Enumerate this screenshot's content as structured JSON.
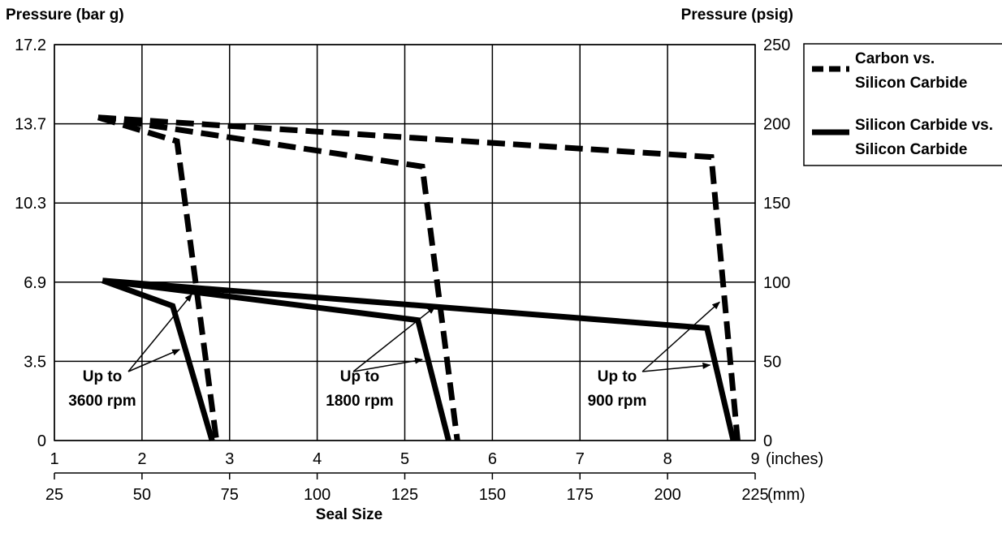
{
  "chart_data": {
    "type": "line",
    "left_axis": {
      "label": "Pressure (bar g)",
      "ticks": [
        "0",
        "3.5",
        "6.9",
        "10.3",
        "13.7",
        "17.2"
      ],
      "range": [
        0,
        17.2
      ]
    },
    "right_axis": {
      "label": "Pressure (psig)",
      "ticks": [
        "0",
        "50",
        "100",
        "150",
        "200",
        "250"
      ],
      "range": [
        0,
        250
      ]
    },
    "x_axis": {
      "label": "Seal Size",
      "range": [
        1,
        9
      ],
      "inch_ticks": [
        "1",
        "2",
        "3",
        "4",
        "5",
        "6",
        "7",
        "8",
        "9"
      ],
      "inch_unit": "(inches)",
      "mm_ticks": [
        "25",
        "50",
        "75",
        "100",
        "125",
        "150",
        "175",
        "200",
        "225"
      ],
      "mm_unit": "(mm)"
    },
    "grid": true,
    "legend": {
      "placement": "right",
      "entries": [
        {
          "style": "dashed",
          "line1": "Carbon vs.",
          "line2": "Silicon Carbide"
        },
        {
          "style": "solid",
          "line1": "Silicon Carbide vs.",
          "line2": "Silicon Carbide"
        }
      ]
    },
    "series": [
      {
        "style": "dashed",
        "group": "3600",
        "points": [
          [
            1.5,
            204
          ],
          [
            2.4,
            189
          ],
          [
            2.85,
            0
          ]
        ]
      },
      {
        "style": "dashed",
        "group": "1800",
        "points": [
          [
            1.5,
            204
          ],
          [
            5.2,
            173
          ],
          [
            5.6,
            0
          ]
        ]
      },
      {
        "style": "dashed",
        "group": "900",
        "points": [
          [
            1.5,
            204
          ],
          [
            8.5,
            179
          ],
          [
            8.8,
            0
          ]
        ]
      },
      {
        "style": "solid",
        "group": "3600",
        "points": [
          [
            1.55,
            101
          ],
          [
            2.35,
            85
          ],
          [
            2.8,
            0
          ]
        ]
      },
      {
        "style": "solid",
        "group": "1800",
        "points": [
          [
            1.55,
            101
          ],
          [
            5.15,
            76
          ],
          [
            5.5,
            0
          ]
        ]
      },
      {
        "style": "solid",
        "group": "900",
        "points": [
          [
            1.55,
            101
          ],
          [
            8.45,
            71
          ],
          [
            8.75,
            0
          ]
        ]
      }
    ],
    "annotations": [
      {
        "group": "3600",
        "line1": "Up to",
        "line2": "3600 rpm"
      },
      {
        "group": "1800",
        "line1": "Up to",
        "line2": "1800 rpm"
      },
      {
        "group": "900",
        "line1": "Up to",
        "line2": "900 rpm"
      }
    ]
  }
}
